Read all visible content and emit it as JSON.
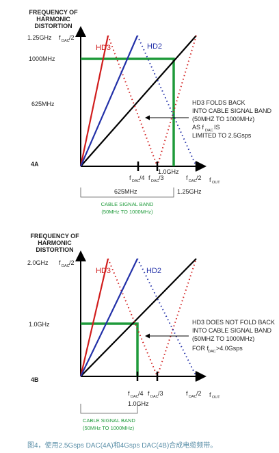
{
  "diagram_4a": {
    "ylabel_lines": [
      "FREQUENCY OF",
      "HARMONIC",
      "DISTORTION"
    ],
    "y_tick_top": "1.25GHz",
    "y_tick_top_f": "f",
    "y_tick_top_sub": "DAC",
    "y_tick_top_div": "/2",
    "y_tick_1000": "1000MHz",
    "y_tick_625": "625MHz",
    "label_hd3": "HD3",
    "label_hd2": "HD2",
    "annotation_lines": [
      "HD3 FOLDS BACK",
      "INTO CABLE SIGNAL BAND",
      "(50MHZ TO 1000MHz)",
      "AS f",
      "IS",
      "LIMITED TO 2.5Gsps"
    ],
    "annotation_sub": "DAC",
    "x_tick_f4": "/4",
    "x_tick_f3": "/3",
    "x_tick_f2": "/2",
    "x_tick_fout": "f",
    "x_tick_fout_sub": "OUT",
    "f_char": "f",
    "dac_sub": "DAC",
    "x_value_1ghz": "1.0GHz",
    "x_value_625": "625MHz",
    "x_value_125": "1.25GHz",
    "figure_tag": "4A",
    "band_line1": "CABLE SIGNAL BAND",
    "band_line2": "(50MHz TO 1000MHz)"
  },
  "diagram_4b": {
    "ylabel_lines": [
      "FREQUENCY OF",
      "HARMONIC",
      "DISTORTION"
    ],
    "y_tick_top": "2.0GHz",
    "y_tick_top_f": "f",
    "y_tick_top_sub": "DAC",
    "y_tick_top_div": "/2",
    "y_tick_1ghz": "1.0GHz",
    "label_hd3": "HD3",
    "label_hd2": "HD2",
    "annotation_lines": [
      "HD3 DOES NOT FOLD BACK",
      "INTO CABLE SIGNAL BAND",
      "(50MHZ TO 1000MHz)",
      "FOR f",
      ">4.0Gsps"
    ],
    "annotation_sub": "DAC",
    "x_tick_f4": "/4",
    "x_tick_f3": "/3",
    "x_tick_f2": "/2",
    "x_tick_fout": "f",
    "x_tick_fout_sub": "OUT",
    "f_char": "f",
    "dac_sub": "DAC",
    "x_value_1ghz": "1.0GHz",
    "figure_tag": "4B",
    "band_line1": "CABLE SIGNAL BAND",
    "band_line2": "(50MHz TO 1000MHz)"
  },
  "caption": "图4，使用2.5Gsps DAC(4A)和4Gsps DAC(4B)合成电缆频带。",
  "colors": {
    "hd3": "#d11d1d",
    "hd2": "#2230a8",
    "fundamental": "#000000",
    "band": "#1e9a3a",
    "caption": "#5b8fa8"
  }
}
